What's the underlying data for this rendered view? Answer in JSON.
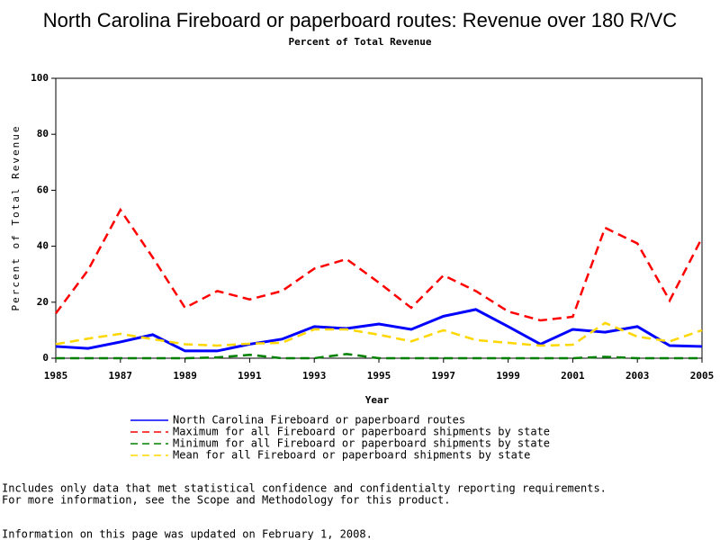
{
  "chart_data": {
    "type": "line",
    "title": "North Carolina Fireboard or paperboard routes: Revenue over 180 R/VC",
    "subtitle": "Percent of Total Revenue",
    "x_label": "Year",
    "y_label": "Percent of Total Revenue",
    "x": [
      1985,
      1986,
      1987,
      1988,
      1989,
      1990,
      1991,
      1992,
      1993,
      1994,
      1995,
      1996,
      1997,
      1998,
      1999,
      2000,
      2001,
      2002,
      2003,
      2004,
      2005
    ],
    "xlim": [
      1985,
      2005
    ],
    "xticks": [
      1985,
      1987,
      1989,
      1991,
      1993,
      1995,
      1997,
      1999,
      2001,
      2003,
      2005
    ],
    "ylim": [
      0,
      100
    ],
    "yticks": [
      0,
      20,
      40,
      60,
      80,
      100
    ],
    "series": [
      {
        "name": "North Carolina Fireboard or paperboard routes",
        "color": "#0000ff",
        "dashed": false,
        "values": [
          4.2,
          3.5,
          5.8,
          8.4,
          2.6,
          2.6,
          5,
          6.8,
          11.3,
          10.6,
          12.2,
          10.3,
          15,
          17.4,
          11.3,
          5,
          10.3,
          9.3,
          11.3,
          4.5,
          4.2
        ]
      },
      {
        "name": "Maximum for all Fireboard or paperboard shipments by state",
        "color": "#ff0000",
        "dashed": true,
        "values": [
          16,
          31.5,
          53,
          36,
          18,
          24,
          21,
          24,
          32,
          35.4,
          27,
          18,
          29.6,
          24,
          16.7,
          13.5,
          14.8,
          46.6,
          41,
          20.6,
          43
        ]
      },
      {
        "name": "Minimum for all Fireboard or paperboard shipments by state",
        "color": "#008000",
        "dashed": true,
        "values": [
          0,
          0,
          0,
          0,
          0,
          0.3,
          1.2,
          0,
          0,
          1.5,
          0,
          0,
          0,
          0,
          0,
          0,
          0,
          0.5,
          0,
          0,
          0
        ]
      },
      {
        "name": "Mean for all Fireboard or paperboard shipments by state",
        "color": "#ffd700",
        "dashed": true,
        "values": [
          5,
          7,
          8.7,
          6.8,
          5,
          4.5,
          5.2,
          5.5,
          10.3,
          10.3,
          8.4,
          6,
          10,
          6.5,
          5.5,
          4.5,
          4.8,
          12.6,
          7.7,
          6,
          10
        ]
      }
    ],
    "notes": [
      "Includes only data that met statistical confidence and confidentialty reporting requirements.",
      "For more information, see the Scope and Methodology for this product.",
      "Information on this page was updated on February 1, 2008."
    ]
  }
}
